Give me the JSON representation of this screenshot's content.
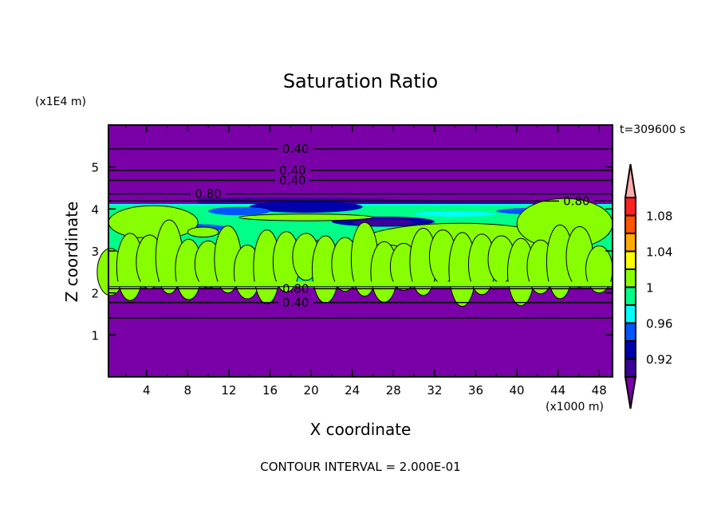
{
  "chart_data": {
    "type": "heatmap",
    "title": "Saturation Ratio",
    "xlabel": "X coordinate",
    "ylabel": "Z coordinate",
    "x_unit": "(x1000 m)",
    "y_unit": "(x1E4 m)",
    "time_label": "t=309600 s",
    "footer": "CONTOUR INTERVAL = 2.000E-01",
    "xlim": [
      0.3,
      49.3
    ],
    "ylim": [
      0,
      6
    ],
    "x_ticks": [
      "4",
      "8",
      "12",
      "16",
      "20",
      "24",
      "28",
      "32",
      "36",
      "40",
      "44",
      "48"
    ],
    "x_tick_values": [
      4,
      8,
      12,
      16,
      20,
      24,
      28,
      32,
      36,
      40,
      44,
      48
    ],
    "y_ticks": [
      "1",
      "2",
      "3",
      "4",
      "5"
    ],
    "y_tick_values": [
      1,
      2,
      3,
      4,
      5
    ],
    "colorbar": {
      "levels": [
        0.9,
        0.92,
        0.94,
        0.96,
        0.98,
        1.0,
        1.02,
        1.04,
        1.06,
        1.08,
        1.1
      ],
      "colors": [
        "#7a00a8",
        "#3a0099",
        "#0000aa",
        "#0055ff",
        "#00ffff",
        "#00ff88",
        "#88ff00",
        "#ffff00",
        "#ffaa00",
        "#ff5500",
        "#ff2222",
        "#ffaaaa"
      ],
      "tick_labels": [
        "0.92",
        "0.96",
        "1",
        "1.04",
        "1.08"
      ],
      "tick_values": [
        0.92,
        0.96,
        1.0,
        1.04,
        1.08
      ]
    },
    "cloud_layer_z": [
      2.15,
      4.1
    ],
    "contour_lines": [
      {
        "z": 5.43,
        "label": "0.40",
        "label_x": 18.5
      },
      {
        "z": 4.92,
        "label": "0.40",
        "label_x": 18.2
      },
      {
        "z": 4.68,
        "label": "0.40",
        "label_x": 18.2
      },
      {
        "z": 4.36,
        "label": "0.80",
        "label_x": 10.0
      },
      {
        "z": 4.19,
        "label": "0.80",
        "label_x": 45.8
      },
      {
        "z": 2.1,
        "label": "0.80",
        "label_x": 18.5
      },
      {
        "z": 1.77,
        "label": "0.40",
        "label_x": 18.5
      },
      {
        "z": 1.4,
        "label": "",
        "label_x": 0
      }
    ]
  }
}
